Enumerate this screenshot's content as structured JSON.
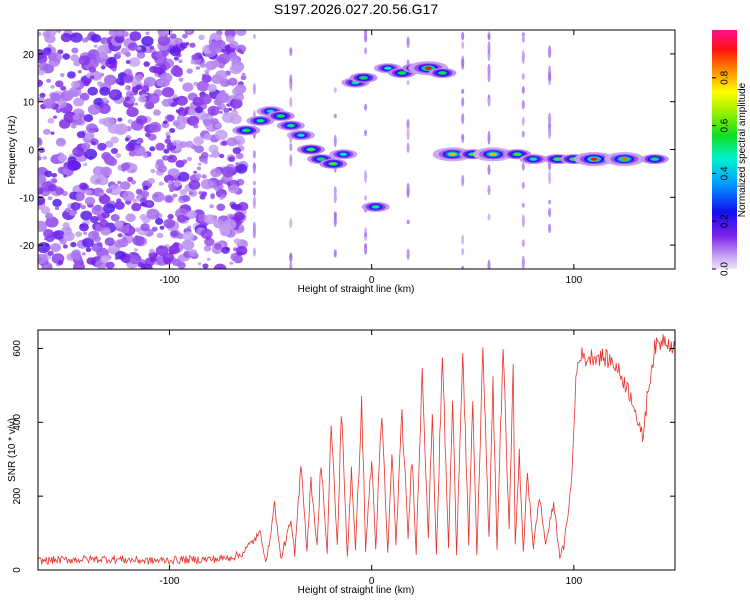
{
  "chart_data": [
    {
      "type": "heatmap",
      "title": "S197.2026.027.20.56.G17",
      "xlabel": "Height of straight line (km)",
      "ylabel": "Frequency (Hz)",
      "xlim": [
        -165,
        150
      ],
      "ylim": [
        -25,
        25
      ],
      "xticks": [
        -100,
        0,
        100
      ],
      "yticks": [
        -20,
        -10,
        0,
        10,
        20
      ],
      "colorbar": {
        "label": "Normalized spectral amplitude",
        "range": [
          0,
          1
        ],
        "ticks": [
          0.0,
          0.2,
          0.4,
          0.6,
          0.8
        ]
      },
      "noise_region": {
        "x_range": [
          -165,
          -66
        ],
        "y_range": [
          -25,
          25
        ]
      },
      "features": [
        {
          "x": -62,
          "y": 4,
          "amp": 0.55
        },
        {
          "x": -55,
          "y": 6,
          "amp": 0.5
        },
        {
          "x": -50,
          "y": 8,
          "amp": 0.45
        },
        {
          "x": -45,
          "y": 7,
          "amp": 0.55
        },
        {
          "x": -40,
          "y": 5,
          "amp": 0.5
        },
        {
          "x": -35,
          "y": 3,
          "amp": 0.45
        },
        {
          "x": -30,
          "y": 0,
          "amp": 0.6
        },
        {
          "x": -25,
          "y": -2,
          "amp": 0.55
        },
        {
          "x": -19,
          "y": -3,
          "amp": 0.6
        },
        {
          "x": -14,
          "y": -1,
          "amp": 0.45
        },
        {
          "x": -8,
          "y": 14,
          "amp": 0.5
        },
        {
          "x": -4,
          "y": 15,
          "amp": 0.55
        },
        {
          "x": 2,
          "y": -12,
          "amp": 0.5
        },
        {
          "x": 8,
          "y": 17,
          "amp": 0.45
        },
        {
          "x": 15,
          "y": 16,
          "amp": 0.55
        },
        {
          "x": 22,
          "y": 17,
          "amp": 0.6
        },
        {
          "x": 28,
          "y": 17,
          "amp": 0.92
        },
        {
          "x": 35,
          "y": 16,
          "amp": 0.55
        },
        {
          "x": 40,
          "y": -1,
          "amp": 0.8
        },
        {
          "x": 50,
          "y": -1,
          "amp": 0.6
        },
        {
          "x": 60,
          "y": -1,
          "amp": 0.8
        },
        {
          "x": 72,
          "y": -1,
          "amp": 0.6
        },
        {
          "x": 80,
          "y": -2,
          "amp": 0.5
        },
        {
          "x": 92,
          "y": -2,
          "amp": 0.6
        },
        {
          "x": 100,
          "y": -2,
          "amp": 0.6
        },
        {
          "x": 110,
          "y": -2,
          "amp": 0.95
        },
        {
          "x": 125,
          "y": -2,
          "amp": 0.85
        },
        {
          "x": 140,
          "y": -2,
          "amp": 0.55
        }
      ]
    },
    {
      "type": "line",
      "xlabel": "Height of straight line (km)",
      "ylabel": "SNR (10 * v/v)",
      "xlim": [
        -165,
        150
      ],
      "ylim": [
        0,
        650
      ],
      "xticks": [
        -100,
        0,
        100
      ],
      "yticks": [
        0,
        200,
        400,
        600
      ],
      "color": "#e8322a",
      "series": [
        {
          "name": "SNR",
          "x": [
            -165,
            -150,
            -130,
            -110,
            -90,
            -75,
            -65,
            -55,
            -52,
            -48,
            -45,
            -40,
            -38,
            -35,
            -32,
            -30,
            -27,
            -25,
            -22,
            -20,
            -17,
            -15,
            -12,
            -10,
            -8,
            -5,
            -3,
            0,
            2,
            5,
            8,
            10,
            12,
            15,
            18,
            20,
            22,
            25,
            28,
            30,
            32,
            35,
            38,
            40,
            42,
            45,
            48,
            50,
            52,
            55,
            58,
            60,
            62,
            65,
            68,
            70,
            71,
            73,
            75,
            77,
            80,
            83,
            86,
            90,
            93,
            95,
            97,
            99,
            101,
            103,
            105,
            110,
            115,
            120,
            125,
            130,
            132,
            134,
            137,
            140,
            145,
            150
          ],
          "y": [
            25,
            28,
            30,
            25,
            28,
            30,
            40,
            100,
            20,
            180,
            30,
            130,
            40,
            300,
            50,
            250,
            60,
            300,
            40,
            400,
            60,
            430,
            35,
            280,
            50,
            450,
            60,
            300,
            60,
            420,
            40,
            330,
            70,
            420,
            90,
            310,
            50,
            550,
            90,
            420,
            40,
            580,
            60,
            450,
            50,
            600,
            70,
            460,
            40,
            600,
            80,
            500,
            60,
            610,
            100,
            580,
            60,
            320,
            40,
            270,
            60,
            200,
            70,
            180,
            40,
            60,
            150,
            250,
            520,
            590,
            570,
            580,
            575,
            560,
            510,
            450,
            380,
            360,
            500,
            600,
            630,
            600
          ]
        }
      ]
    }
  ]
}
